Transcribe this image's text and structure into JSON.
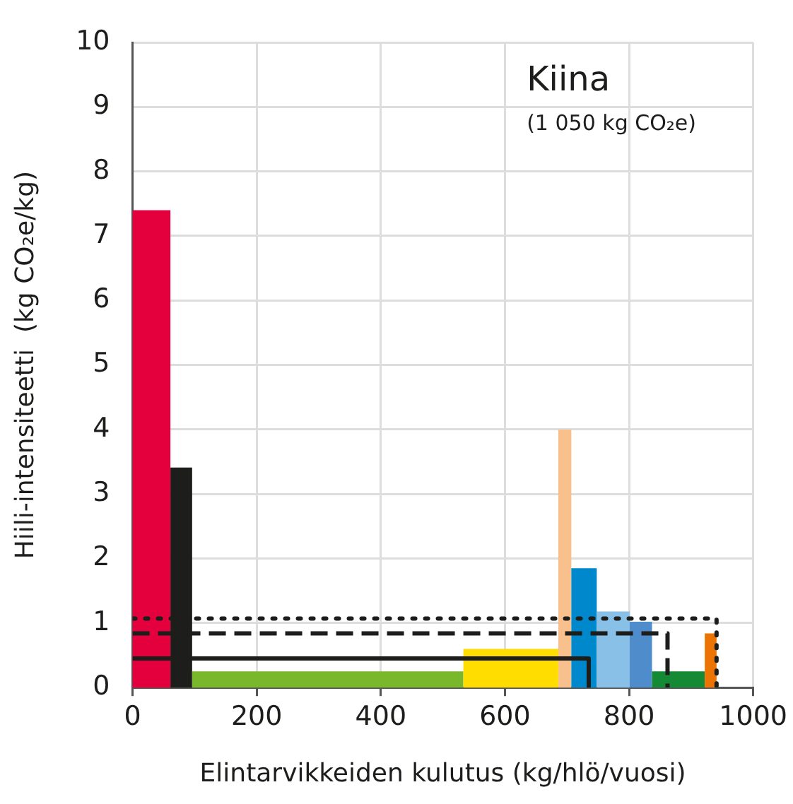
{
  "chart_data": {
    "type": "histogram",
    "xlabel": "Elintarvikkeiden kulutus (kg/hlö/vuosi)",
    "ylabel": "Hiili-intensiteetti  (kg CO₂e/kg)",
    "annotations": [
      "Kiina",
      "(1 050 kg CO₂e)"
    ],
    "xlim": [
      0,
      1000
    ],
    "xticks": [
      0,
      200,
      400,
      600,
      800,
      1000
    ],
    "ylim": [
      0,
      10
    ],
    "yticks": [
      0,
      1,
      2,
      3,
      4,
      5,
      6,
      7,
      8,
      9,
      10
    ],
    "grid": true,
    "legend": false,
    "series": [
      {
        "bins": [
          0,
          61,
          96,
          533,
          686,
          707,
          748,
          801,
          837,
          922,
          941
        ],
        "values": [
          7.4,
          3.41,
          0.25,
          0.6,
          4.0,
          1.85,
          1.18,
          1.02,
          0.25,
          0.84
        ],
        "colors": [
          "#e4003c",
          "#1d1d1b",
          "#78b82a",
          "#ffdd00",
          "#f8c08c",
          "#0088cc",
          "#88c0e8",
          "#4f8ccc",
          "#148a35",
          "#ec7404"
        ]
      },
      {
        "type": "line",
        "x": [
          0,
          941,
          941
        ],
        "values": [
          1.07,
          1.07,
          0
        ],
        "color": "#1d1d1b",
        "line_style": "dotted"
      },
      {
        "type": "line",
        "x": [
          0,
          862,
          862
        ],
        "values": [
          0.84,
          0.84,
          0
        ],
        "color": "#1d1d1b",
        "line_style": "dashed"
      },
      {
        "type": "line",
        "x": [
          0,
          735,
          735
        ],
        "values": [
          0.45,
          0.45,
          0
        ],
        "color": "#1d1d1b",
        "line_style": "solid"
      }
    ]
  }
}
